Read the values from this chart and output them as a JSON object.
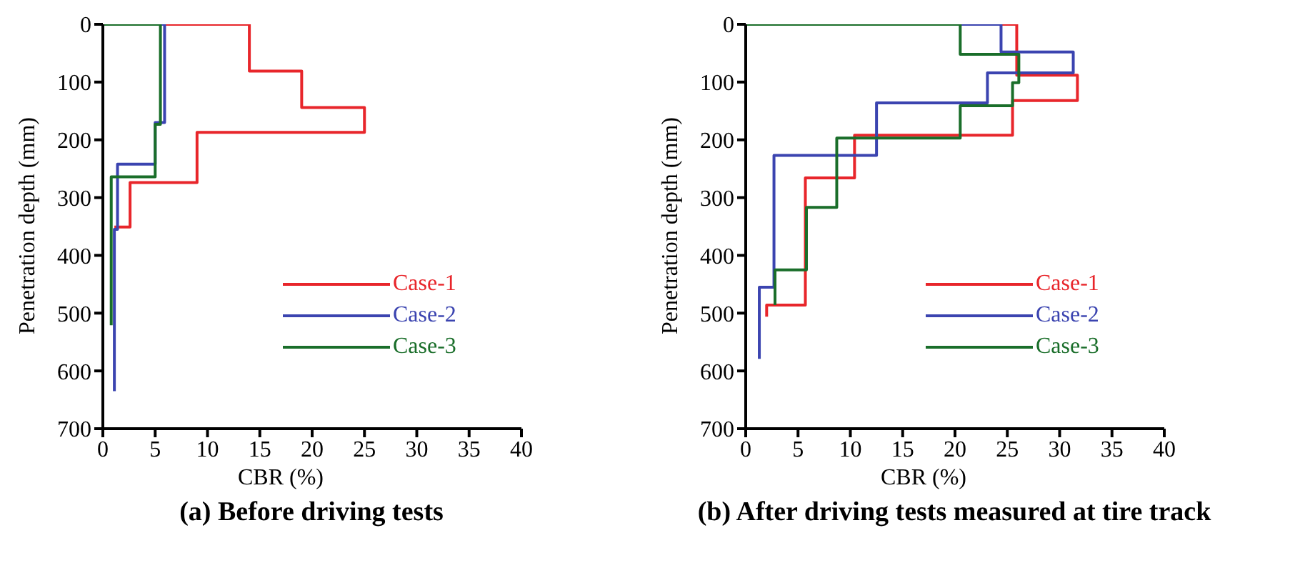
{
  "chart_data": [
    {
      "type": "line",
      "title": "(a) Before driving tests",
      "xlabel": "CBR (%)",
      "ylabel": "Penetration depth  (mm)",
      "xlim": [
        0,
        40
      ],
      "xticks": [
        0,
        5,
        10,
        15,
        20,
        25,
        30,
        35,
        40
      ],
      "ylim": [
        700,
        0
      ],
      "yticks": [
        0,
        100,
        200,
        300,
        400,
        500,
        600,
        700
      ],
      "legend": "right",
      "series": [
        {
          "name": "Case-1",
          "color": "#e8262b",
          "x": [
            0,
            14,
            14,
            19,
            19,
            25,
            25,
            9,
            9,
            2.6,
            2.6,
            1.1
          ],
          "values": [
            0,
            0,
            81,
            81,
            144,
            144,
            187,
            187,
            274,
            274,
            351,
            351
          ]
        },
        {
          "name": "Case-2",
          "color": "#3b44b0",
          "x": [
            0,
            5.9,
            5.9,
            5,
            5,
            1.4,
            1.4,
            1.1,
            1.1
          ],
          "values": [
            0,
            0,
            170,
            170,
            242,
            242,
            355,
            355,
            635
          ]
        },
        {
          "name": "Case-3",
          "color": "#1a6e2a",
          "x": [
            0,
            5.5,
            5.5,
            5,
            5,
            0.8,
            0.8
          ],
          "values": [
            0,
            0,
            173,
            173,
            264,
            264,
            521
          ]
        }
      ]
    },
    {
      "type": "line",
      "title": "(b) After driving tests measured at tire track",
      "xlabel": "CBR (%)",
      "ylabel": "Penetration depth  (mm)",
      "xlim": [
        0,
        40
      ],
      "xticks": [
        0,
        5,
        10,
        15,
        20,
        25,
        30,
        35,
        40
      ],
      "ylim": [
        700,
        0
      ],
      "yticks": [
        0,
        100,
        200,
        300,
        400,
        500,
        600,
        700
      ],
      "legend": "right",
      "series": [
        {
          "name": "Case-1",
          "color": "#e8262b",
          "x": [
            0,
            25.9,
            25.9,
            31.7,
            31.7,
            25.5,
            25.5,
            10.4,
            10.4,
            5.7,
            5.7,
            2,
            2
          ],
          "values": [
            0,
            0,
            88,
            88,
            132,
            132,
            192,
            192,
            266,
            266,
            486,
            486,
            506
          ]
        },
        {
          "name": "Case-2",
          "color": "#3b44b0",
          "x": [
            0,
            24.4,
            24.4,
            31.3,
            31.3,
            23.1,
            23.1,
            12.5,
            12.5,
            2.7,
            2.7,
            1.3,
            1.3
          ],
          "values": [
            0,
            0,
            48,
            48,
            84,
            84,
            136,
            136,
            227,
            227,
            455,
            455,
            579
          ]
        },
        {
          "name": "Case-3",
          "color": "#1a6e2a",
          "x": [
            0,
            20.5,
            20.5,
            26.1,
            26.1,
            25.5,
            25.5,
            20.5,
            20.5,
            8.7,
            8.7,
            5.8,
            5.8,
            2.8,
            2.8
          ],
          "values": [
            0,
            0,
            52,
            52,
            101,
            101,
            141,
            141,
            197,
            197,
            317,
            317,
            425,
            425,
            486
          ]
        }
      ]
    }
  ]
}
